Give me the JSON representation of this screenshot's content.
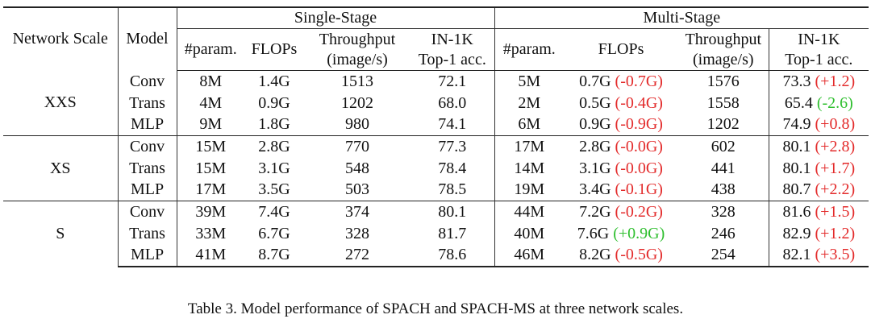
{
  "table": {
    "groups": {
      "single": "Single-Stage",
      "multi": "Multi-Stage"
    },
    "headers": {
      "network_scale": "Network Scale",
      "model": "Model",
      "param": "#param.",
      "flops": "FLOPs",
      "throughput_1": "Throughput",
      "throughput_2": "(image/s)",
      "acc_1": "IN-1K",
      "acc_2": "Top-1 acc."
    },
    "scales": [
      {
        "name": "XXS",
        "rows": [
          {
            "model": "Conv",
            "s_param": "8M",
            "s_flops": "1.4G",
            "s_tp": "1513",
            "s_acc": "72.1",
            "m_param": "5M",
            "m_flops": "0.7G",
            "m_flops_delta": "(-0.7G)",
            "m_flops_color": "neg",
            "m_tp": "1576",
            "m_acc": "73.3",
            "m_acc_delta": "(+1.2)",
            "m_acc_color": "neg"
          },
          {
            "model": "Trans",
            "s_param": "4M",
            "s_flops": "0.9G",
            "s_tp": "1202",
            "s_acc": "68.0",
            "m_param": "2M",
            "m_flops": "0.5G",
            "m_flops_delta": "(-0.4G)",
            "m_flops_color": "neg",
            "m_tp": "1558",
            "m_acc": "65.4",
            "m_acc_delta": "(-2.6)",
            "m_acc_color": "pos"
          },
          {
            "model": "MLP",
            "s_param": "9M",
            "s_flops": "1.8G",
            "s_tp": "980",
            "s_acc": "74.1",
            "m_param": "6M",
            "m_flops": "0.9G",
            "m_flops_delta": "(-0.9G)",
            "m_flops_color": "neg",
            "m_tp": "1202",
            "m_acc": "74.9",
            "m_acc_delta": "(+0.8)",
            "m_acc_color": "neg"
          }
        ]
      },
      {
        "name": "XS",
        "rows": [
          {
            "model": "Conv",
            "s_param": "15M",
            "s_flops": "2.8G",
            "s_tp": "770",
            "s_acc": "77.3",
            "m_param": "17M",
            "m_flops": "2.8G",
            "m_flops_delta": "(-0.0G)",
            "m_flops_color": "neg",
            "m_tp": "602",
            "m_acc": "80.1",
            "m_acc_delta": "(+2.8)",
            "m_acc_color": "neg"
          },
          {
            "model": "Trans",
            "s_param": "15M",
            "s_flops": "3.1G",
            "s_tp": "548",
            "s_acc": "78.4",
            "m_param": "14M",
            "m_flops": "3.1G",
            "m_flops_delta": "(-0.0G)",
            "m_flops_color": "neg",
            "m_tp": "441",
            "m_acc": "80.1",
            "m_acc_delta": "(+1.7)",
            "m_acc_color": "neg"
          },
          {
            "model": "MLP",
            "s_param": "17M",
            "s_flops": "3.5G",
            "s_tp": "503",
            "s_acc": "78.5",
            "m_param": "19M",
            "m_flops": "3.4G",
            "m_flops_delta": "(-0.1G)",
            "m_flops_color": "neg",
            "m_tp": "438",
            "m_acc": "80.7",
            "m_acc_delta": "(+2.2)",
            "m_acc_color": "neg"
          }
        ]
      },
      {
        "name": "S",
        "rows": [
          {
            "model": "Conv",
            "s_param": "39M",
            "s_flops": "7.4G",
            "s_tp": "374",
            "s_acc": "80.1",
            "m_param": "44M",
            "m_flops": "7.2G",
            "m_flops_delta": "(-0.2G)",
            "m_flops_color": "neg",
            "m_tp": "328",
            "m_acc": "81.6",
            "m_acc_delta": "(+1.5)",
            "m_acc_color": "neg"
          },
          {
            "model": "Trans",
            "s_param": "33M",
            "s_flops": "6.7G",
            "s_tp": "328",
            "s_acc": "81.7",
            "m_param": "40M",
            "m_flops": "7.6G",
            "m_flops_delta": "(+0.9G)",
            "m_flops_color": "pos",
            "m_tp": "246",
            "m_acc": "82.9",
            "m_acc_delta": "(+1.2)",
            "m_acc_color": "neg"
          },
          {
            "model": "MLP",
            "s_param": "41M",
            "s_flops": "8.7G",
            "s_tp": "272",
            "s_acc": "78.6",
            "m_param": "46M",
            "m_flops": "8.2G",
            "m_flops_delta": "(-0.5G)",
            "m_flops_color": "neg",
            "m_tp": "254",
            "m_acc": "82.1",
            "m_acc_delta": "(+3.5)",
            "m_acc_color": "neg"
          }
        ]
      }
    ],
    "colors": {
      "neg": "#e32b2b",
      "pos": "#2fbf2f"
    }
  },
  "caption": "Table 3. Model performance of SPACH and SPACH-MS at three network scales."
}
